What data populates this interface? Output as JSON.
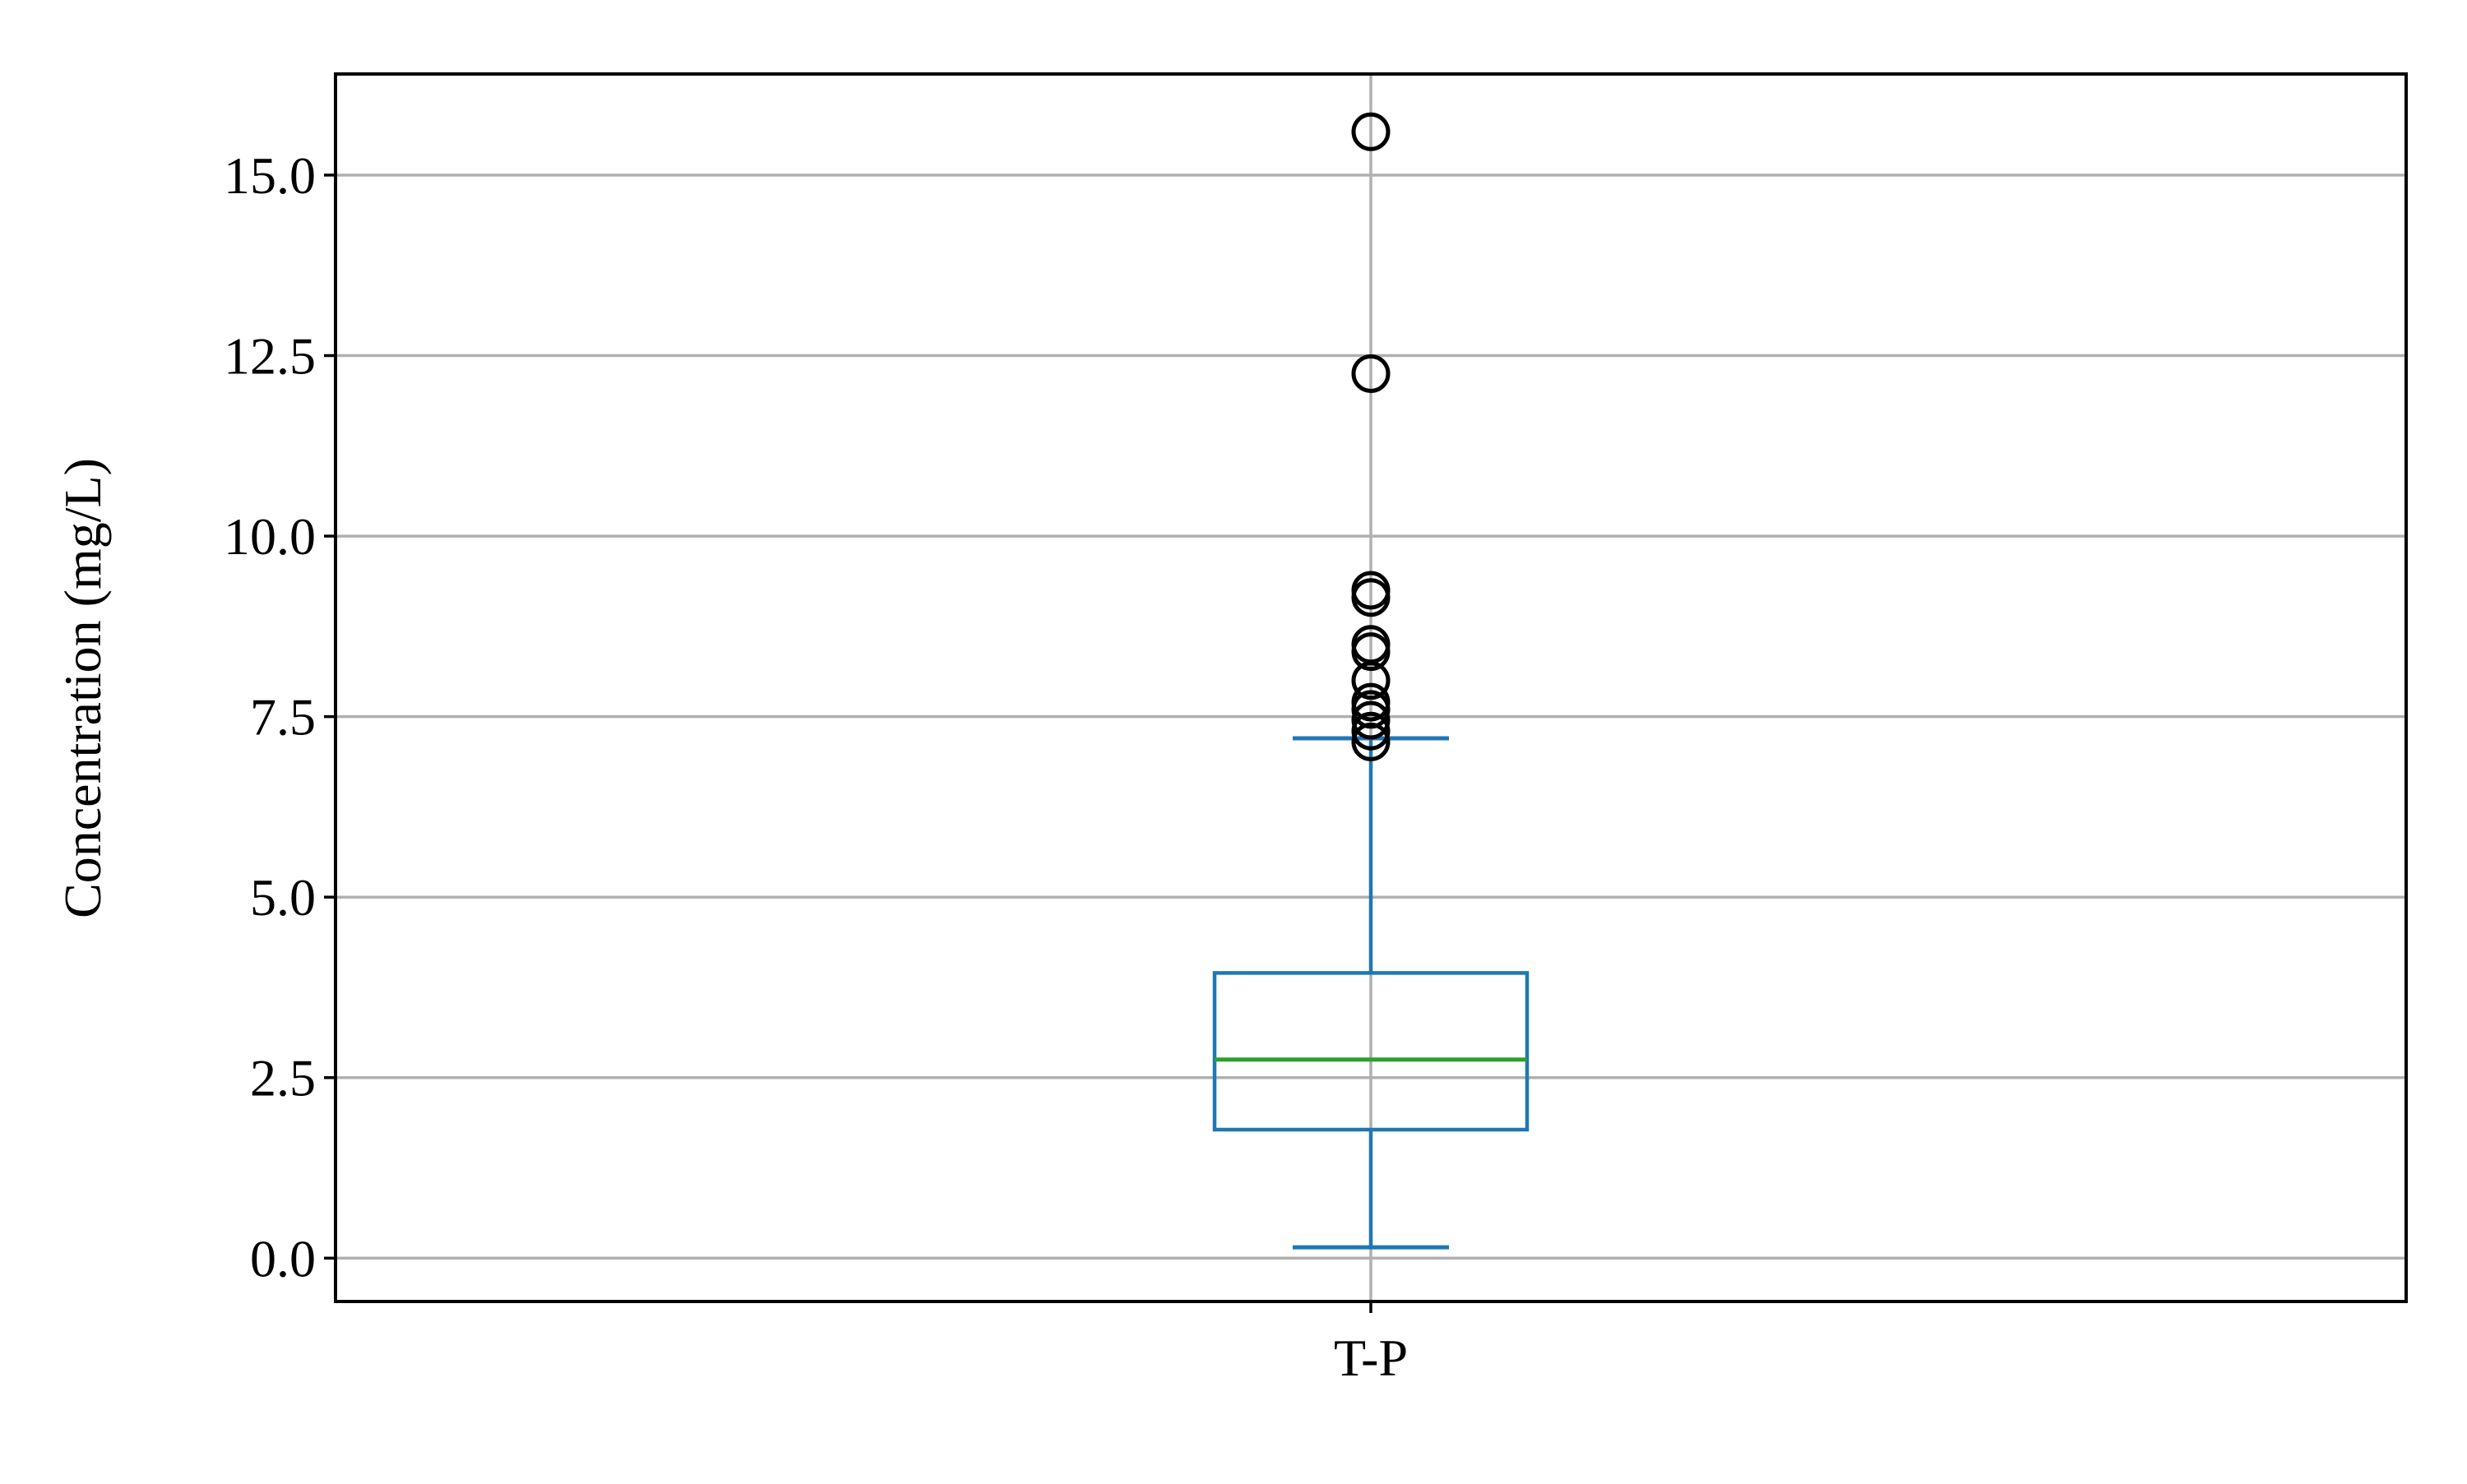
{
  "chart_data": {
    "type": "box",
    "title": "",
    "xlabel": "",
    "ylabel": "Concentration (mg/L)",
    "ylim": [
      -0.6,
      16.4
    ],
    "yticks": [
      0.0,
      2.5,
      5.0,
      7.5,
      10.0,
      12.5,
      15.0
    ],
    "ytick_labels": [
      "0.0",
      "2.5",
      "5.0",
      "7.5",
      "10.0",
      "12.5",
      "15.0"
    ],
    "grid": true,
    "categories": [
      "T-P"
    ],
    "boxes": [
      {
        "category": "T-P",
        "whisker_low": 0.15,
        "q1": 1.78,
        "median": 2.75,
        "q3": 3.95,
        "whisker_high": 7.2,
        "outliers": [
          7.15,
          7.3,
          7.45,
          7.6,
          7.7,
          8.0,
          8.4,
          8.5,
          9.15,
          9.25,
          12.25,
          15.6
        ]
      }
    ],
    "colors": {
      "box": "#1f77b4",
      "median": "#2ca02c",
      "outlier": "#000000",
      "grid": "#b0b0b0",
      "axes": "#000000"
    }
  }
}
